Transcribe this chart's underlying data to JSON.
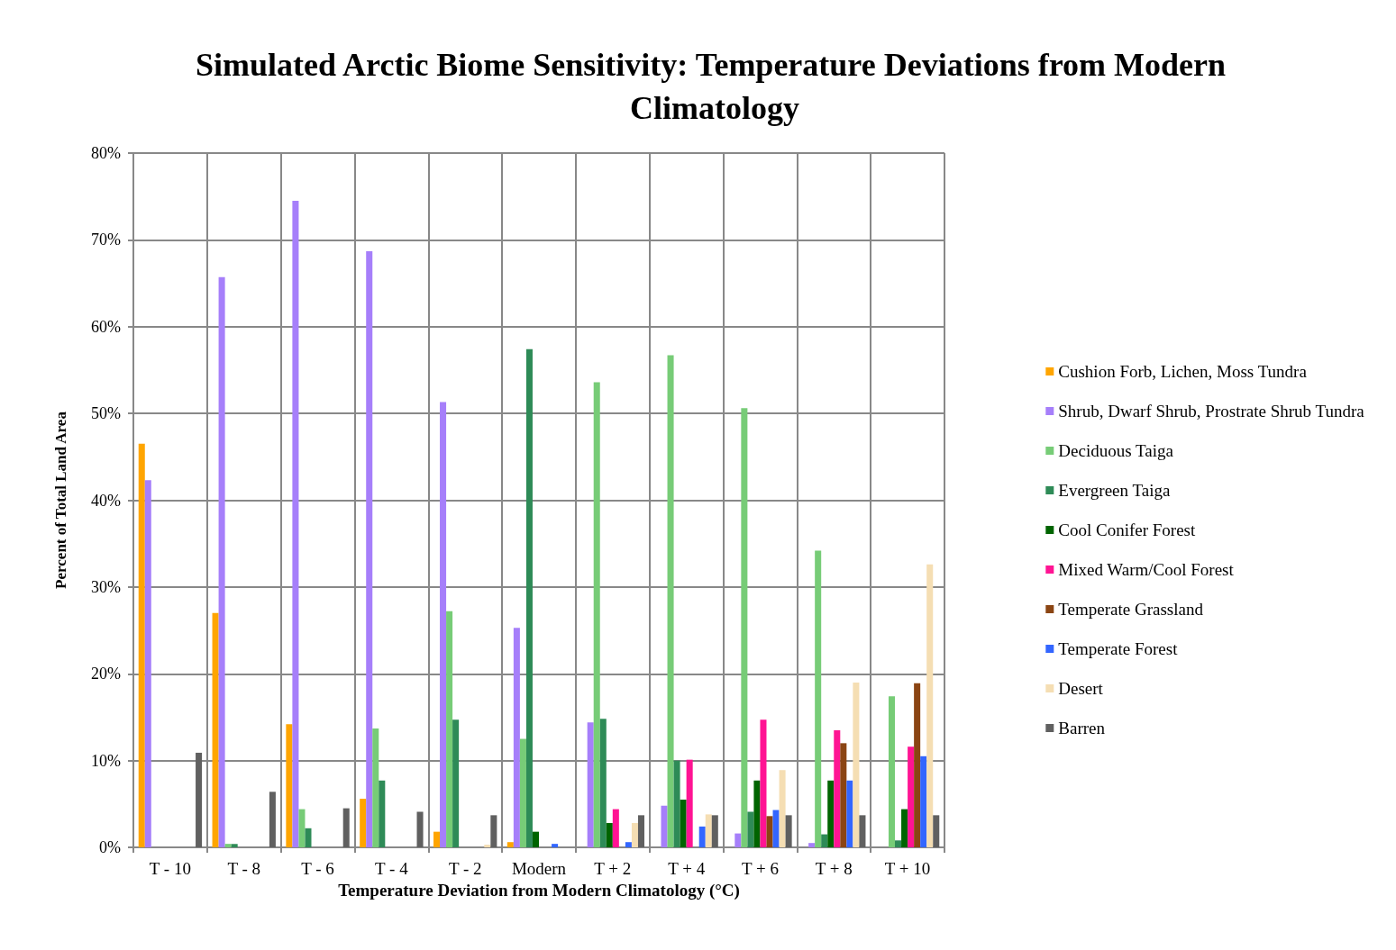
{
  "chart_data": {
    "type": "bar",
    "title": "Simulated Arctic Biome Sensitivity: Temperature Deviations from Modern Climatology",
    "xlabel": "Temperature Deviation from Modern Climatology (°C)",
    "ylabel": "Percent of Total Land Area",
    "categories": [
      "T - 10",
      "T - 8",
      "T - 6",
      "T - 4",
      "T - 2",
      "Modern",
      "T + 2",
      "T + 4",
      "T + 6",
      "T + 8",
      "T + 10"
    ],
    "series": [
      {
        "name": "Cushion Forb, Lichen, Moss Tundra",
        "color": "#ffa500",
        "values": [
          46.5,
          27.0,
          14.2,
          5.6,
          1.8,
          0.6,
          0,
          0,
          0,
          0,
          0
        ]
      },
      {
        "name": "Shrub, Dwarf Shrub, Prostrate Shrub Tundra",
        "color": "#a67ffa",
        "values": [
          42.3,
          65.7,
          74.5,
          68.7,
          51.3,
          25.3,
          14.4,
          4.8,
          1.6,
          0.5,
          0
        ]
      },
      {
        "name": "Deciduous Taiga",
        "color": "#77cc77",
        "values": [
          0,
          0.4,
          4.4,
          13.7,
          27.2,
          12.5,
          53.6,
          56.7,
          50.6,
          34.2,
          17.4
        ]
      },
      {
        "name": "Evergreen Taiga",
        "color": "#2e8b57",
        "values": [
          0,
          0.4,
          2.2,
          7.7,
          14.7,
          57.4,
          14.8,
          10.0,
          4.1,
          1.5,
          0.8
        ]
      },
      {
        "name": "Cool Conifer Forest",
        "color": "#006400",
        "values": [
          0,
          0,
          0,
          0,
          0,
          1.8,
          2.8,
          5.5,
          7.7,
          7.7,
          4.4
        ]
      },
      {
        "name": "Mixed Warm/Cool Forest",
        "color": "#ff1493",
        "values": [
          0,
          0,
          0,
          0,
          0,
          0,
          4.4,
          10.1,
          14.7,
          13.5,
          11.6
        ]
      },
      {
        "name": "Temperate Grassland",
        "color": "#8b4513",
        "values": [
          0,
          0,
          0,
          0,
          0,
          0,
          0,
          0,
          3.6,
          12.0,
          18.9
        ]
      },
      {
        "name": "Temperate Forest",
        "color": "#3366ff",
        "values": [
          0,
          0,
          0,
          0,
          0,
          0.4,
          0.6,
          2.4,
          4.3,
          7.7,
          10.5
        ]
      },
      {
        "name": "Desert",
        "color": "#f5deb3",
        "values": [
          0,
          0,
          0,
          0,
          0.3,
          0,
          2.8,
          3.8,
          8.9,
          19.0,
          32.6
        ]
      },
      {
        "name": "Barren",
        "color": "#606060",
        "values": [
          10.9,
          6.4,
          4.5,
          4.1,
          3.7,
          0,
          3.7,
          3.7,
          3.7,
          3.7,
          3.7
        ]
      }
    ],
    "ylim": [
      0,
      80
    ],
    "yticks": [
      {
        "value": 0,
        "label": "0%"
      },
      {
        "value": 10,
        "label": "10%"
      },
      {
        "value": 20,
        "label": "20%"
      },
      {
        "value": 30,
        "label": "30%"
      },
      {
        "value": 40,
        "label": "40%"
      },
      {
        "value": 50,
        "label": "50%"
      },
      {
        "value": 60,
        "label": "60%"
      },
      {
        "value": 70,
        "label": "70%"
      },
      {
        "value": 80,
        "label": "80%"
      }
    ],
    "grid": true,
    "legend": "right"
  }
}
